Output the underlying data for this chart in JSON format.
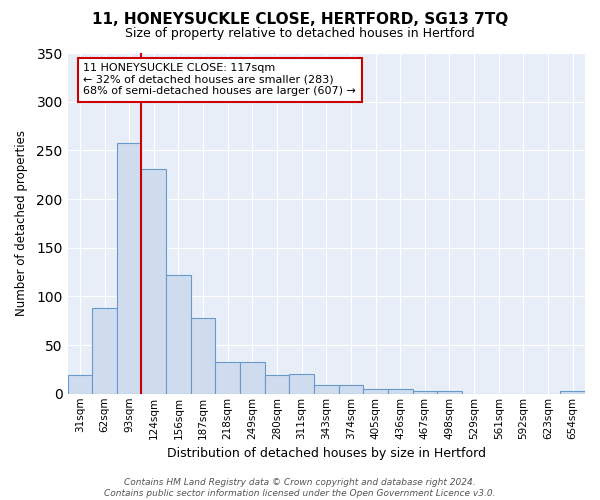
{
  "title": "11, HONEYSUCKLE CLOSE, HERTFORD, SG13 7TQ",
  "subtitle": "Size of property relative to detached houses in Hertford",
  "xlabel": "Distribution of detached houses by size in Hertford",
  "ylabel": "Number of detached properties",
  "bar_color": "#cfdcee",
  "bar_edge_color": "#6899cc",
  "background_color": "#e8eef8",
  "grid_color": "#ffffff",
  "categories": [
    "31sqm",
    "62sqm",
    "93sqm",
    "124sqm",
    "156sqm",
    "187sqm",
    "218sqm",
    "249sqm",
    "280sqm",
    "311sqm",
    "343sqm",
    "374sqm",
    "405sqm",
    "436sqm",
    "467sqm",
    "498sqm",
    "529sqm",
    "561sqm",
    "592sqm",
    "623sqm",
    "654sqm"
  ],
  "values": [
    19,
    88,
    258,
    231,
    122,
    78,
    33,
    33,
    19,
    20,
    9,
    9,
    5,
    5,
    3,
    3,
    0,
    0,
    0,
    0,
    3
  ],
  "redline_bin": 3,
  "annotation_line1": "11 HONEYSUCKLE CLOSE: 117sqm",
  "annotation_line2": "← 32% of detached houses are smaller (283)",
  "annotation_line3": "68% of semi-detached houses are larger (607) →",
  "annotation_box_color": "#ffffff",
  "annotation_box_edge": "#cc0000",
  "redline_color": "#cc0000",
  "ylim": [
    0,
    350
  ],
  "yticks": [
    0,
    50,
    100,
    150,
    200,
    250,
    300,
    350
  ],
  "fig_bg": "#ffffff",
  "footer": "Contains HM Land Registry data © Crown copyright and database right 2024.\nContains public sector information licensed under the Open Government Licence v3.0."
}
